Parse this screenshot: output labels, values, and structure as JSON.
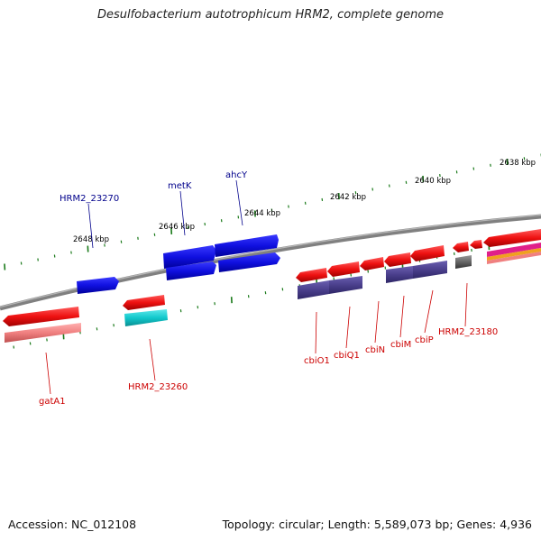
{
  "title": "Desulfobacterium autotrophicum HRM2, complete genome",
  "footer": {
    "accession": "Accession: NC_012108",
    "summary": "Topology: circular; Length: 5,589,073 bp; Genes: 4,936"
  },
  "colors": {
    "backbone": "#808080",
    "forward_gene": "#1010e0",
    "reverse_gene": "#ee1111",
    "forward_label": "#00008b",
    "reverse_label": "#cc0000",
    "cds_track": "#4a3f8c",
    "rna_cyan": "#10c8cc",
    "pseudo_gray": "#666666",
    "tick": "#1a7a1a"
  },
  "scale_labels": [
    "2648 kbp",
    "2646 kbp",
    "2644 kbp",
    "2642 kbp",
    "2640 kbp",
    "2638 kbp"
  ],
  "gene_labels_forward": [
    "HRM2_23270",
    "metK",
    "ahcY"
  ],
  "gene_labels_reverse": [
    "gatA1",
    "HRM2_23260",
    "cbiO1",
    "cbiQ1",
    "cbiN",
    "cbiM",
    "cbiP",
    "HRM2_23180"
  ]
}
